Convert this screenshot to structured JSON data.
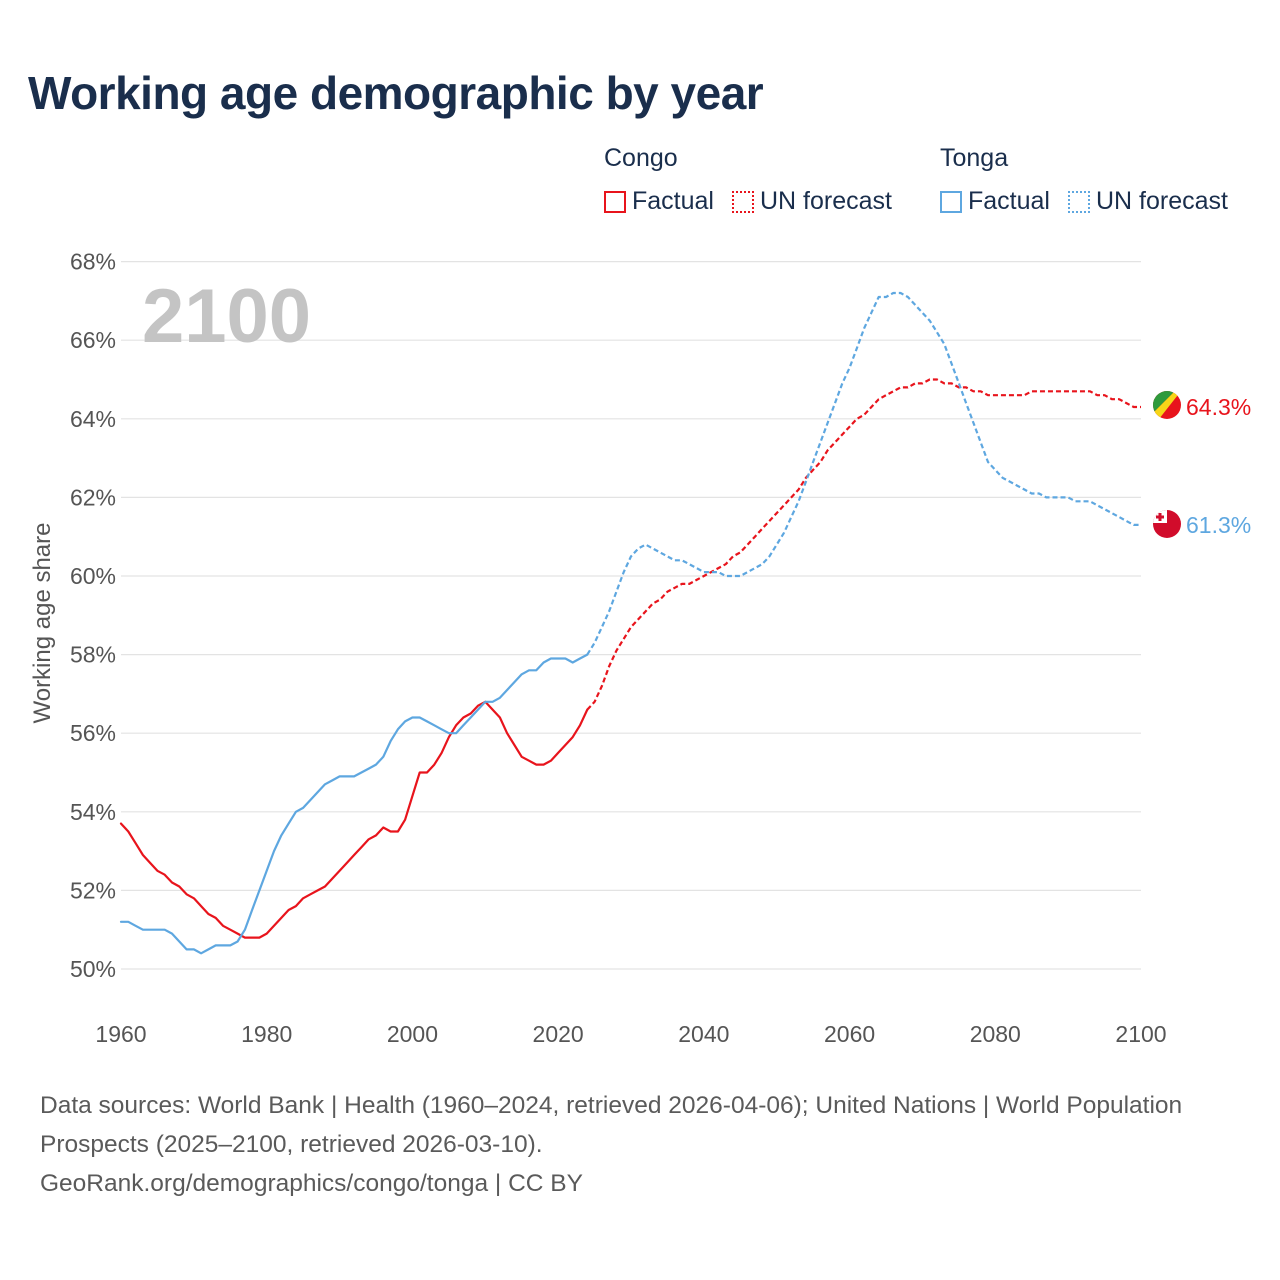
{
  "title": "Working age demographic by year",
  "legend": {
    "groups": [
      {
        "name": "Congo",
        "color": "#e8141c",
        "factual_label": "Factual",
        "forecast_label": "UN forecast"
      },
      {
        "name": "Tonga",
        "color": "#5ea7e0",
        "factual_label": "Factual",
        "forecast_label": "UN forecast"
      }
    ]
  },
  "chart_data": {
    "type": "line",
    "ylabel": "Working age share",
    "xlabel": "",
    "year_watermark": "2100",
    "xlim": [
      1960,
      2100
    ],
    "ylim": [
      49,
      68
    ],
    "x_ticks": [
      1960,
      1980,
      2000,
      2020,
      2040,
      2060,
      2080,
      2100
    ],
    "x_tick_labels": [
      "1960",
      "1980",
      "2000",
      "2020",
      "2040",
      "2060",
      "2080",
      "2100"
    ],
    "y_ticks": [
      50,
      52,
      54,
      56,
      58,
      60,
      62,
      64,
      66,
      68
    ],
    "y_tick_labels": [
      "50%",
      "52%",
      "54%",
      "56%",
      "58%",
      "60%",
      "62%",
      "64%",
      "66%",
      "68%"
    ],
    "grid": true,
    "series": [
      {
        "name": "Congo",
        "color": "#e8141c",
        "end_label": "64.3%",
        "flag": "congo-flag",
        "factual": [
          [
            1960,
            53.7
          ],
          [
            1961,
            53.5
          ],
          [
            1962,
            53.2
          ],
          [
            1963,
            52.9
          ],
          [
            1964,
            52.7
          ],
          [
            1965,
            52.5
          ],
          [
            1966,
            52.4
          ],
          [
            1967,
            52.2
          ],
          [
            1968,
            52.1
          ],
          [
            1969,
            51.9
          ],
          [
            1970,
            51.8
          ],
          [
            1971,
            51.6
          ],
          [
            1972,
            51.4
          ],
          [
            1973,
            51.3
          ],
          [
            1974,
            51.1
          ],
          [
            1975,
            51.0
          ],
          [
            1976,
            50.9
          ],
          [
            1977,
            50.8
          ],
          [
            1978,
            50.8
          ],
          [
            1979,
            50.8
          ],
          [
            1980,
            50.9
          ],
          [
            1981,
            51.1
          ],
          [
            1982,
            51.3
          ],
          [
            1983,
            51.5
          ],
          [
            1984,
            51.6
          ],
          [
            1985,
            51.8
          ],
          [
            1986,
            51.9
          ],
          [
            1987,
            52.0
          ],
          [
            1988,
            52.1
          ],
          [
            1989,
            52.3
          ],
          [
            1990,
            52.5
          ],
          [
            1991,
            52.7
          ],
          [
            1992,
            52.9
          ],
          [
            1993,
            53.1
          ],
          [
            1994,
            53.3
          ],
          [
            1995,
            53.4
          ],
          [
            1996,
            53.6
          ],
          [
            1997,
            53.5
          ],
          [
            1998,
            53.5
          ],
          [
            1999,
            53.8
          ],
          [
            2000,
            54.4
          ],
          [
            2001,
            55.0
          ],
          [
            2002,
            55.0
          ],
          [
            2003,
            55.2
          ],
          [
            2004,
            55.5
          ],
          [
            2005,
            55.9
          ],
          [
            2006,
            56.2
          ],
          [
            2007,
            56.4
          ],
          [
            2008,
            56.5
          ],
          [
            2009,
            56.7
          ],
          [
            2010,
            56.8
          ],
          [
            2011,
            56.6
          ],
          [
            2012,
            56.4
          ],
          [
            2013,
            56.0
          ],
          [
            2014,
            55.7
          ],
          [
            2015,
            55.4
          ],
          [
            2016,
            55.3
          ],
          [
            2017,
            55.2
          ],
          [
            2018,
            55.2
          ],
          [
            2019,
            55.3
          ],
          [
            2020,
            55.5
          ],
          [
            2021,
            55.7
          ],
          [
            2022,
            55.9
          ],
          [
            2023,
            56.2
          ],
          [
            2024,
            56.6
          ]
        ],
        "forecast": [
          [
            2024,
            56.6
          ],
          [
            2025,
            56.8
          ],
          [
            2026,
            57.2
          ],
          [
            2027,
            57.7
          ],
          [
            2028,
            58.1
          ],
          [
            2029,
            58.4
          ],
          [
            2030,
            58.7
          ],
          [
            2031,
            58.9
          ],
          [
            2032,
            59.1
          ],
          [
            2033,
            59.3
          ],
          [
            2034,
            59.4
          ],
          [
            2035,
            59.6
          ],
          [
            2036,
            59.7
          ],
          [
            2037,
            59.8
          ],
          [
            2038,
            59.8
          ],
          [
            2039,
            59.9
          ],
          [
            2040,
            60.0
          ],
          [
            2041,
            60.1
          ],
          [
            2042,
            60.2
          ],
          [
            2043,
            60.3
          ],
          [
            2044,
            60.5
          ],
          [
            2045,
            60.6
          ],
          [
            2046,
            60.8
          ],
          [
            2047,
            61.0
          ],
          [
            2048,
            61.2
          ],
          [
            2049,
            61.4
          ],
          [
            2050,
            61.6
          ],
          [
            2051,
            61.8
          ],
          [
            2052,
            62.0
          ],
          [
            2053,
            62.2
          ],
          [
            2054,
            62.5
          ],
          [
            2055,
            62.7
          ],
          [
            2056,
            62.9
          ],
          [
            2057,
            63.2
          ],
          [
            2058,
            63.4
          ],
          [
            2059,
            63.6
          ],
          [
            2060,
            63.8
          ],
          [
            2061,
            64.0
          ],
          [
            2062,
            64.1
          ],
          [
            2063,
            64.3
          ],
          [
            2064,
            64.5
          ],
          [
            2065,
            64.6
          ],
          [
            2066,
            64.7
          ],
          [
            2067,
            64.8
          ],
          [
            2068,
            64.8
          ],
          [
            2069,
            64.9
          ],
          [
            2070,
            64.9
          ],
          [
            2071,
            65.0
          ],
          [
            2072,
            65.0
          ],
          [
            2073,
            64.9
          ],
          [
            2074,
            64.9
          ],
          [
            2075,
            64.8
          ],
          [
            2076,
            64.8
          ],
          [
            2077,
            64.7
          ],
          [
            2078,
            64.7
          ],
          [
            2079,
            64.6
          ],
          [
            2080,
            64.6
          ],
          [
            2081,
            64.6
          ],
          [
            2082,
            64.6
          ],
          [
            2083,
            64.6
          ],
          [
            2084,
            64.6
          ],
          [
            2085,
            64.7
          ],
          [
            2086,
            64.7
          ],
          [
            2087,
            64.7
          ],
          [
            2088,
            64.7
          ],
          [
            2089,
            64.7
          ],
          [
            2090,
            64.7
          ],
          [
            2091,
            64.7
          ],
          [
            2092,
            64.7
          ],
          [
            2093,
            64.7
          ],
          [
            2094,
            64.6
          ],
          [
            2095,
            64.6
          ],
          [
            2096,
            64.5
          ],
          [
            2097,
            64.5
          ],
          [
            2098,
            64.4
          ],
          [
            2099,
            64.3
          ],
          [
            2100,
            64.3
          ]
        ]
      },
      {
        "name": "Tonga",
        "color": "#5ea7e0",
        "end_label": "61.3%",
        "flag": "tonga-flag",
        "factual": [
          [
            1960,
            51.2
          ],
          [
            1961,
            51.2
          ],
          [
            1962,
            51.1
          ],
          [
            1963,
            51.0
          ],
          [
            1964,
            51.0
          ],
          [
            1965,
            51.0
          ],
          [
            1966,
            51.0
          ],
          [
            1967,
            50.9
          ],
          [
            1968,
            50.7
          ],
          [
            1969,
            50.5
          ],
          [
            1970,
            50.5
          ],
          [
            1971,
            50.4
          ],
          [
            1972,
            50.5
          ],
          [
            1973,
            50.6
          ],
          [
            1974,
            50.6
          ],
          [
            1975,
            50.6
          ],
          [
            1976,
            50.7
          ],
          [
            1977,
            51.0
          ],
          [
            1978,
            51.5
          ],
          [
            1979,
            52.0
          ],
          [
            1980,
            52.5
          ],
          [
            1981,
            53.0
          ],
          [
            1982,
            53.4
          ],
          [
            1983,
            53.7
          ],
          [
            1984,
            54.0
          ],
          [
            1985,
            54.1
          ],
          [
            1986,
            54.3
          ],
          [
            1987,
            54.5
          ],
          [
            1988,
            54.7
          ],
          [
            1989,
            54.8
          ],
          [
            1990,
            54.9
          ],
          [
            1991,
            54.9
          ],
          [
            1992,
            54.9
          ],
          [
            1993,
            55.0
          ],
          [
            1994,
            55.1
          ],
          [
            1995,
            55.2
          ],
          [
            1996,
            55.4
          ],
          [
            1997,
            55.8
          ],
          [
            1998,
            56.1
          ],
          [
            1999,
            56.3
          ],
          [
            2000,
            56.4
          ],
          [
            2001,
            56.4
          ],
          [
            2002,
            56.3
          ],
          [
            2003,
            56.2
          ],
          [
            2004,
            56.1
          ],
          [
            2005,
            56.0
          ],
          [
            2006,
            56.0
          ],
          [
            2007,
            56.2
          ],
          [
            2008,
            56.4
          ],
          [
            2009,
            56.6
          ],
          [
            2010,
            56.8
          ],
          [
            2011,
            56.8
          ],
          [
            2012,
            56.9
          ],
          [
            2013,
            57.1
          ],
          [
            2014,
            57.3
          ],
          [
            2015,
            57.5
          ],
          [
            2016,
            57.6
          ],
          [
            2017,
            57.6
          ],
          [
            2018,
            57.8
          ],
          [
            2019,
            57.9
          ],
          [
            2020,
            57.9
          ],
          [
            2021,
            57.9
          ],
          [
            2022,
            57.8
          ],
          [
            2023,
            57.9
          ],
          [
            2024,
            58.0
          ]
        ],
        "forecast": [
          [
            2024,
            58.0
          ],
          [
            2025,
            58.3
          ],
          [
            2026,
            58.7
          ],
          [
            2027,
            59.1
          ],
          [
            2028,
            59.6
          ],
          [
            2029,
            60.1
          ],
          [
            2030,
            60.5
          ],
          [
            2031,
            60.7
          ],
          [
            2032,
            60.8
          ],
          [
            2033,
            60.7
          ],
          [
            2034,
            60.6
          ],
          [
            2035,
            60.5
          ],
          [
            2036,
            60.4
          ],
          [
            2037,
            60.4
          ],
          [
            2038,
            60.3
          ],
          [
            2039,
            60.2
          ],
          [
            2040,
            60.1
          ],
          [
            2041,
            60.1
          ],
          [
            2042,
            60.1
          ],
          [
            2043,
            60.0
          ],
          [
            2044,
            60.0
          ],
          [
            2045,
            60.0
          ],
          [
            2046,
            60.1
          ],
          [
            2047,
            60.2
          ],
          [
            2048,
            60.3
          ],
          [
            2049,
            60.5
          ],
          [
            2050,
            60.8
          ],
          [
            2051,
            61.1
          ],
          [
            2052,
            61.5
          ],
          [
            2053,
            61.9
          ],
          [
            2054,
            62.4
          ],
          [
            2055,
            62.9
          ],
          [
            2056,
            63.4
          ],
          [
            2057,
            63.9
          ],
          [
            2058,
            64.4
          ],
          [
            2059,
            64.9
          ],
          [
            2060,
            65.3
          ],
          [
            2061,
            65.8
          ],
          [
            2062,
            66.3
          ],
          [
            2063,
            66.7
          ],
          [
            2064,
            67.1
          ],
          [
            2065,
            67.1
          ],
          [
            2066,
            67.2
          ],
          [
            2067,
            67.2
          ],
          [
            2068,
            67.1
          ],
          [
            2069,
            66.9
          ],
          [
            2070,
            66.7
          ],
          [
            2071,
            66.5
          ],
          [
            2072,
            66.2
          ],
          [
            2073,
            65.9
          ],
          [
            2074,
            65.4
          ],
          [
            2075,
            64.9
          ],
          [
            2076,
            64.4
          ],
          [
            2077,
            63.9
          ],
          [
            2078,
            63.4
          ],
          [
            2079,
            62.9
          ],
          [
            2080,
            62.7
          ],
          [
            2081,
            62.5
          ],
          [
            2082,
            62.4
          ],
          [
            2083,
            62.3
          ],
          [
            2084,
            62.2
          ],
          [
            2085,
            62.1
          ],
          [
            2086,
            62.1
          ],
          [
            2087,
            62.0
          ],
          [
            2088,
            62.0
          ],
          [
            2089,
            62.0
          ],
          [
            2090,
            62.0
          ],
          [
            2091,
            61.9
          ],
          [
            2092,
            61.9
          ],
          [
            2093,
            61.9
          ],
          [
            2094,
            61.8
          ],
          [
            2095,
            61.7
          ],
          [
            2096,
            61.6
          ],
          [
            2097,
            61.5
          ],
          [
            2098,
            61.4
          ],
          [
            2099,
            61.3
          ],
          [
            2100,
            61.3
          ]
        ]
      }
    ]
  },
  "footer": {
    "sources": "Data sources: World Bank | Health (1960–2024, retrieved 2026-04-06); United Nations | World Population Prospects (2025–2100, retrieved 2026-03-10).",
    "credit": "GeoRank.org/demographics/congo/tonga | CC BY"
  }
}
